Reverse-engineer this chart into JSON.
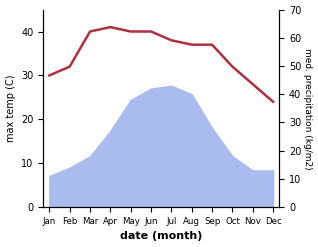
{
  "months": [
    "Jan",
    "Feb",
    "Mar",
    "Apr",
    "May",
    "Jun",
    "Jul",
    "Aug",
    "Sep",
    "Oct",
    "Nov",
    "Dec"
  ],
  "temperature": [
    30,
    32,
    40,
    41,
    40,
    40,
    38,
    37,
    37,
    32,
    28,
    24
  ],
  "precipitation": [
    11,
    14,
    18,
    27,
    38,
    42,
    43,
    40,
    28,
    18,
    13,
    13
  ],
  "temp_color": "#b03040",
  "precip_fill_color": "#aabbee",
  "xlabel": "date (month)",
  "ylabel_left": "max temp (C)",
  "ylabel_right": "med. precipitation (kg/m2)",
  "ylim_left": [
    0,
    45
  ],
  "ylim_right": [
    0,
    70
  ],
  "yticks_left": [
    0,
    10,
    20,
    30,
    40
  ],
  "yticks_right": [
    0,
    10,
    20,
    30,
    40,
    50,
    60,
    70
  ],
  "background_color": "#ffffff"
}
